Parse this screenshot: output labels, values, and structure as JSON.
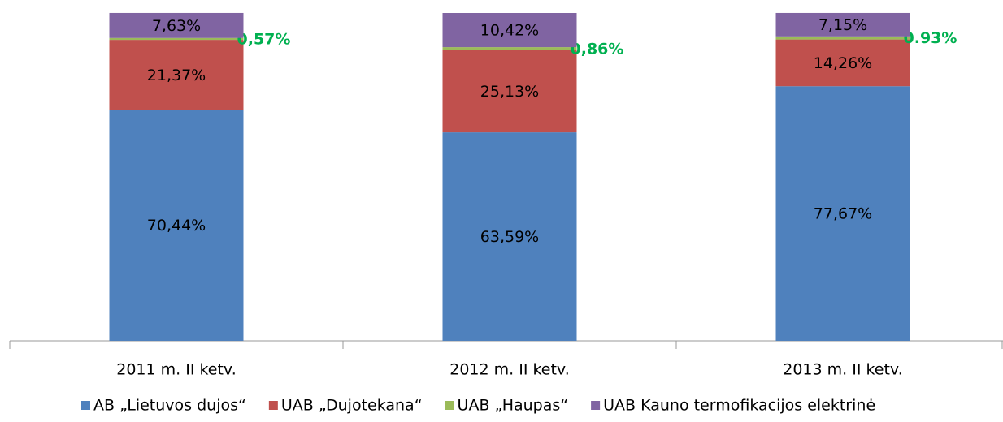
{
  "chart_data": {
    "type": "stacked_bar",
    "categories": [
      "2011 m. II ketv.",
      "2012 m. II ketv.",
      "2013 m. II ketv."
    ],
    "series": [
      {
        "name": "AB „Lietuvos dujos“",
        "color": "#4f81bd",
        "values": [
          70.44,
          63.59,
          77.67
        ],
        "value_labels": [
          "70,44%",
          "63,59%",
          "77,67%"
        ]
      },
      {
        "name": "UAB „Dujotekana“",
        "color": "#c0504d",
        "values": [
          21.37,
          25.13,
          14.26
        ],
        "value_labels": [
          "21,37%",
          "25,13%",
          "14,26%"
        ]
      },
      {
        "name": "UAB „Haupas“",
        "color": "#9bbb59",
        "values": [
          0.57,
          0.86,
          0.93
        ],
        "value_labels": [
          "0,57%",
          "0,86%",
          "0.93%"
        ]
      },
      {
        "name": "UAB Kauno termofikacijos elektrinė",
        "color": "#8064a2",
        "values": [
          7.63,
          10.42,
          7.15
        ],
        "value_labels": [
          "7,63%",
          "10,42%",
          "7,15%"
        ]
      }
    ],
    "ylim": [
      0,
      100
    ],
    "legend": "bottom"
  }
}
